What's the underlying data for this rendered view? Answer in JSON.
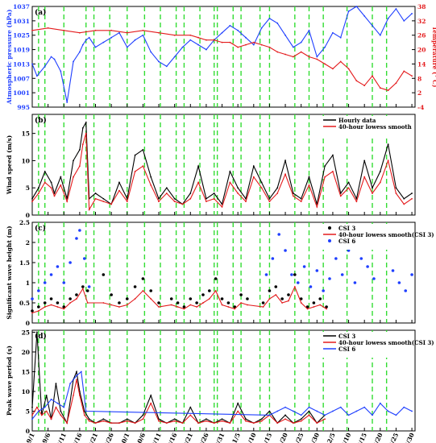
{
  "x_dates": [
    "9/1",
    "9/6",
    "9/11",
    "9/16",
    "9/21",
    "9/26",
    "10/1",
    "10/6",
    "10/11",
    "10/16",
    "10/21",
    "10/26",
    "10/31",
    "11/5",
    "11/10",
    "11/15",
    "11/20",
    "11/25",
    "11/30",
    "12/5",
    "12/10",
    "12/15",
    "12/20",
    "12/25",
    "12/30"
  ],
  "colors": {
    "black": "#000000",
    "red": "#e41a1c",
    "blue": "#1f3fff",
    "green": "#33dd33"
  },
  "event_days": [
    4,
    8,
    20,
    34,
    39,
    49,
    60,
    71,
    81,
    91,
    96,
    106,
    115,
    117,
    127,
    132,
    144,
    150,
    166,
    175,
    184,
    199,
    215,
    224
  ],
  "chart_data": [
    {
      "id": "a",
      "tag": "(a)",
      "type": "line",
      "xlim": [
        0,
        242
      ],
      "left_axis": {
        "label": "Atmospheric pressure (hPa)",
        "ticks": [
          "995",
          "1001",
          "1007",
          "1013",
          "1019",
          "1025",
          "1031",
          "1037"
        ],
        "lim": [
          995,
          1037
        ],
        "color": "#1f3fff"
      },
      "right_axis": {
        "label": "Temperature (° C)",
        "ticks": [
          "-4",
          "2",
          "8",
          "14",
          "20",
          "26",
          "32",
          "38"
        ],
        "lim": [
          -4,
          38
        ],
        "color": "#e41a1c"
      },
      "series": [
        {
          "role": "pressure",
          "color": "#1f3fff",
          "axis": "left",
          "x": [
            0,
            3,
            8,
            12,
            14,
            18,
            22,
            26,
            30,
            32,
            34,
            36,
            40,
            45,
            50,
            55,
            60,
            65,
            70,
            75,
            80,
            85,
            90,
            95,
            100,
            105,
            110,
            115,
            120,
            125,
            130,
            135,
            140,
            145,
            150,
            155,
            160,
            165,
            170,
            175,
            180,
            185,
            190,
            195,
            200,
            205,
            210,
            215,
            220,
            225,
            230,
            235,
            240
          ],
          "y": [
            1013,
            1008,
            1012,
            1016,
            1015,
            1010,
            997,
            1014,
            1018,
            1021,
            1023,
            1024,
            1020,
            1022,
            1024,
            1026,
            1020,
            1023,
            1025,
            1018,
            1014,
            1012,
            1016,
            1020,
            1023,
            1021,
            1019,
            1023,
            1026,
            1029,
            1027,
            1024,
            1021,
            1028,
            1032,
            1030,
            1025,
            1020,
            1022,
            1027,
            1016,
            1020,
            1026,
            1024,
            1035,
            1037,
            1033,
            1029,
            1025,
            1032,
            1036,
            1031,
            1034
          ]
        },
        {
          "role": "temperature",
          "color": "#e41a1c",
          "axis": "right",
          "x": [
            0,
            10,
            20,
            30,
            40,
            50,
            60,
            70,
            80,
            90,
            100,
            105,
            110,
            115,
            120,
            125,
            130,
            135,
            140,
            145,
            150,
            155,
            160,
            165,
            170,
            175,
            180,
            185,
            190,
            195,
            200,
            205,
            210,
            215,
            220,
            225,
            230,
            235,
            240
          ],
          "y": [
            28,
            29,
            28,
            27,
            28,
            28,
            27,
            28,
            27,
            26,
            26,
            25,
            24,
            24,
            23,
            23,
            21,
            22,
            23,
            22,
            21,
            19,
            18,
            17,
            19,
            17,
            16,
            14,
            12,
            15,
            12,
            7,
            5,
            9,
            4,
            3,
            6,
            11,
            9
          ]
        }
      ]
    },
    {
      "id": "b",
      "tag": "(b)",
      "type": "line",
      "xlim": [
        0,
        242
      ],
      "ylabel": "Wind speed (m/s)",
      "yticks": [
        "0",
        "5",
        "10",
        "15"
      ],
      "ylim": [
        0,
        18.5
      ],
      "legend": [
        "Hourly data",
        "40-hour lowess smooth"
      ],
      "series": [
        {
          "name": "Hourly data",
          "color": "#000000",
          "x": [
            0,
            4,
            8,
            12,
            14,
            18,
            22,
            26,
            30,
            32,
            34,
            36,
            40,
            45,
            50,
            55,
            60,
            65,
            70,
            75,
            80,
            85,
            90,
            95,
            100,
            105,
            110,
            115,
            120,
            125,
            130,
            135,
            140,
            145,
            150,
            155,
            160,
            165,
            170,
            175,
            180,
            185,
            190,
            195,
            200,
            205,
            210,
            215,
            220,
            225,
            230,
            235,
            240
          ],
          "y": [
            3,
            5,
            8,
            6,
            4,
            7,
            3,
            10,
            12,
            16,
            17,
            3,
            4,
            3,
            2,
            6,
            3,
            11,
            12,
            7,
            3,
            5,
            3,
            2,
            4,
            9,
            3,
            4,
            2,
            8,
            5,
            3,
            9,
            6,
            3,
            5,
            10,
            4,
            3,
            7,
            2,
            9,
            11,
            4,
            6,
            3,
            10,
            5,
            8,
            13,
            5,
            3,
            4
          ]
        },
        {
          "name": "40-hour lowess smooth",
          "color": "#e41a1c",
          "x": [
            0,
            4,
            8,
            12,
            14,
            18,
            22,
            26,
            30,
            32,
            34,
            36,
            40,
            45,
            50,
            55,
            60,
            65,
            70,
            75,
            80,
            85,
            90,
            95,
            100,
            105,
            110,
            115,
            120,
            125,
            130,
            135,
            140,
            145,
            150,
            155,
            160,
            165,
            170,
            175,
            180,
            185,
            190,
            195,
            200,
            205,
            210,
            215,
            220,
            225,
            230,
            235,
            240
          ],
          "y": [
            2.5,
            4,
            6,
            5,
            3.5,
            5.5,
            2.5,
            7,
            9,
            13,
            15,
            1,
            3,
            2.5,
            2,
            4.5,
            2.5,
            8,
            9,
            5.5,
            2.5,
            4,
            2.5,
            2,
            3,
            6,
            2.5,
            3,
            1.5,
            6,
            4,
            2.5,
            7,
            5,
            2.5,
            4,
            7.5,
            3.5,
            2.5,
            5.5,
            1.5,
            7,
            8,
            3.5,
            5,
            2.5,
            7,
            4,
            6,
            10,
            4,
            2,
            3
          ]
        }
      ]
    },
    {
      "id": "c",
      "tag": "(c)",
      "type": "scatter",
      "xlim": [
        0,
        242
      ],
      "ylabel": "Significant wave height (m)",
      "yticks": [
        "0",
        "0.5",
        "1",
        "1.5",
        "2",
        "2.5"
      ],
      "ylim": [
        0,
        2.5
      ],
      "legend": [
        "CSI 3",
        "40-hour lowess smooth(CSI 3)",
        "CSI 6"
      ],
      "series": [
        {
          "name": "CSI 3",
          "color": "#000000",
          "mode": "markers",
          "x": [
            0,
            4,
            8,
            12,
            16,
            20,
            24,
            28,
            32,
            35,
            45,
            50,
            55,
            60,
            65,
            70,
            75,
            80,
            88,
            92,
            96,
            100,
            104,
            108,
            112,
            116,
            120,
            124,
            128,
            132,
            136,
            146,
            150,
            154,
            158,
            162,
            166,
            170,
            174,
            178,
            182,
            186
          ],
          "y": [
            0.3,
            0.4,
            0.5,
            0.6,
            0.5,
            0.4,
            0.6,
            0.7,
            0.9,
            0.8,
            1.2,
            0.7,
            0.5,
            0.6,
            0.9,
            1.1,
            0.8,
            0.5,
            0.6,
            0.5,
            0.4,
            0.6,
            0.5,
            0.7,
            0.8,
            1.1,
            0.6,
            0.5,
            0.4,
            0.7,
            0.6,
            0.5,
            0.8,
            0.9,
            0.6,
            0.7,
            1.2,
            0.6,
            0.4,
            0.5,
            0.6,
            0.4
          ]
        },
        {
          "name": "40-hour lowess smooth(CSI 3)",
          "color": "#e41a1c",
          "mode": "line",
          "x": [
            0,
            4,
            8,
            12,
            16,
            20,
            24,
            28,
            32,
            35,
            45,
            50,
            55,
            60,
            65,
            70,
            75,
            80,
            88,
            92,
            96,
            100,
            104,
            108,
            112,
            116,
            120,
            124,
            128,
            132,
            136,
            146,
            150,
            154,
            158,
            162,
            166,
            170,
            174,
            178,
            182,
            186
          ],
          "y": [
            0.25,
            0.3,
            0.4,
            0.45,
            0.4,
            0.35,
            0.5,
            0.6,
            0.85,
            0.5,
            0.5,
            0.45,
            0.4,
            0.45,
            0.6,
            0.8,
            0.6,
            0.4,
            0.45,
            0.4,
            0.35,
            0.45,
            0.4,
            0.5,
            0.6,
            0.8,
            0.45,
            0.4,
            0.35,
            0.5,
            0.45,
            0.4,
            0.6,
            0.7,
            0.5,
            0.55,
            0.9,
            0.5,
            0.35,
            0.4,
            0.45,
            0.35
          ]
        },
        {
          "name": "CSI 6",
          "color": "#1f3fff",
          "mode": "markers",
          "x": [
            0,
            4,
            8,
            12,
            16,
            20,
            24,
            28,
            30,
            33,
            36,
            148,
            152,
            156,
            160,
            164,
            168,
            172,
            176,
            180,
            184,
            188,
            192,
            196,
            200,
            204,
            208,
            212,
            216,
            220,
            224,
            228,
            232,
            236,
            240
          ],
          "y": [
            0.6,
            0.8,
            1.0,
            1.2,
            1.4,
            1.0,
            1.5,
            2.1,
            2.3,
            1.6,
            0.9,
            1.2,
            1.6,
            2.2,
            1.8,
            1.2,
            1.0,
            1.4,
            0.9,
            1.3,
            0.8,
            1.1,
            1.6,
            1.2,
            1.8,
            1.0,
            1.6,
            1.4,
            1.1,
            2.1,
            2.4,
            1.3,
            1.0,
            0.8,
            1.2
          ]
        }
      ]
    },
    {
      "id": "d",
      "tag": "(d)",
      "type": "line",
      "xlim": [
        0,
        242
      ],
      "ylabel": "Peak wave period (s)",
      "yticks": [
        "0",
        "5",
        "10",
        "15",
        "20",
        "25"
      ],
      "ylim": [
        0,
        25.5
      ],
      "legend": [
        "CSI 3",
        "40-hour lowess smooth(CSI 3)",
        "CSI 6"
      ],
      "series": [
        {
          "name": "CSI 3",
          "color": "#000000",
          "x": [
            0,
            3,
            6,
            9,
            12,
            15,
            18,
            22,
            26,
            28,
            30,
            33,
            36,
            40,
            45,
            50,
            55,
            60,
            65,
            70,
            75,
            80,
            85,
            90,
            95,
            100,
            105,
            110,
            115,
            120,
            125,
            130,
            135,
            140,
            145,
            150,
            155,
            160,
            165,
            170,
            175,
            180,
            185
          ],
          "y": [
            6,
            25,
            4,
            9,
            3,
            12,
            5,
            2,
            13,
            15,
            10,
            5,
            3,
            2,
            3,
            2,
            2,
            3,
            2,
            4,
            9,
            3,
            2,
            3,
            2,
            6,
            2,
            3,
            2,
            3,
            2,
            7,
            3,
            2,
            3,
            5,
            2,
            4,
            2,
            3,
            5,
            2,
            4
          ]
        },
        {
          "name": "40-hour lowess smooth(CSI 3)",
          "color": "#e41a1c",
          "x": [
            0,
            3,
            6,
            9,
            12,
            15,
            18,
            22,
            26,
            28,
            30,
            33,
            36,
            40,
            45,
            50,
            55,
            60,
            65,
            70,
            75,
            80,
            85,
            90,
            95,
            100,
            105,
            110,
            115,
            120,
            125,
            130,
            135,
            140,
            145,
            150,
            155,
            160,
            165,
            170,
            175,
            180,
            185
          ],
          "y": [
            4,
            6,
            4,
            5,
            3,
            6,
            4,
            2,
            9,
            13,
            9,
            4,
            2.5,
            2,
            2.5,
            2,
            2,
            2.5,
            2,
            3,
            7,
            2.5,
            2,
            2.5,
            2,
            4,
            2,
            2.5,
            2,
            2.5,
            2,
            5,
            2.5,
            2,
            2.5,
            4,
            2,
            3,
            2,
            2.5,
            4,
            2,
            3
          ]
        },
        {
          "name": "CSI 6",
          "color": "#1f3fff",
          "x": [
            0,
            4,
            8,
            12,
            16,
            20,
            24,
            28,
            31,
            34,
            150,
            155,
            160,
            165,
            170,
            175,
            180,
            185,
            190,
            195,
            200,
            205,
            210,
            215,
            220,
            225,
            230,
            235,
            240
          ],
          "y": [
            3,
            5,
            6,
            8,
            7,
            6,
            12,
            14,
            15,
            5,
            4,
            5,
            6,
            5,
            4,
            6,
            5,
            4,
            5,
            6,
            4,
            5,
            6,
            4,
            7,
            5,
            4,
            6,
            5
          ]
        }
      ]
    }
  ]
}
